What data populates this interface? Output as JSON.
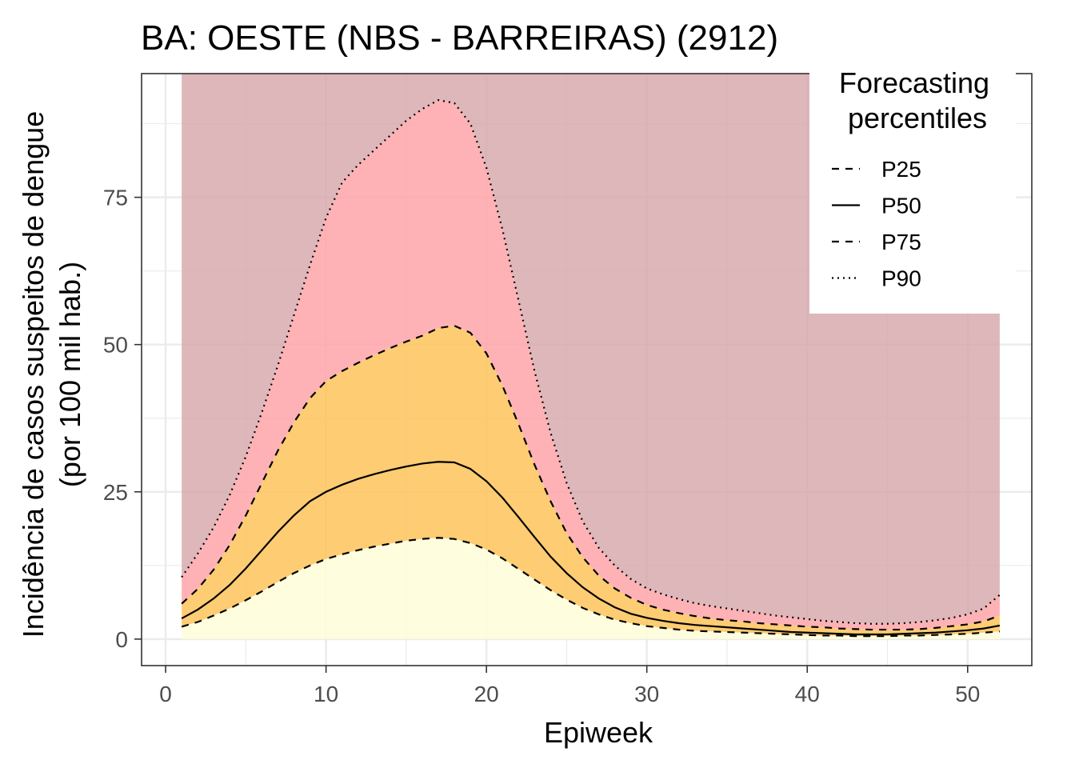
{
  "chart_data": {
    "type": "area",
    "title": "BA: OESTE (NBS - BARREIRAS) (2912)",
    "xlabel": "Epiweek",
    "ylabel_line1": "Incidência de casos suspeitos de dengue",
    "ylabel_line2": "(por 100 mil hab.)",
    "xlim": [
      -1.5,
      54
    ],
    "ylim": [
      -4.5,
      96
    ],
    "x_ticks": [
      0,
      10,
      20,
      30,
      40,
      50
    ],
    "x_tick_labels": [
      "0",
      "10",
      "20",
      "30",
      "40",
      "50"
    ],
    "y_ticks": [
      0,
      25,
      50,
      75
    ],
    "y_tick_labels": [
      "0",
      "25",
      "50",
      "75"
    ],
    "grid": true,
    "background_top": 96,
    "legend": {
      "title_line1": "Forecasting",
      "title_line2": "percentiles",
      "position": "top-right-inside",
      "items": [
        {
          "label": "P25",
          "linetype": "dashed"
        },
        {
          "label": "P50",
          "linetype": "solid"
        },
        {
          "label": "P75",
          "linetype": "dashed"
        },
        {
          "label": "P90",
          "linetype": "dotted"
        }
      ]
    },
    "colors": {
      "band_top": "#d5a5a7",
      "band_p90": "#fea5a8",
      "band_p75": "#fdc35b",
      "band_p25": "#fefed8",
      "line": "#000000"
    },
    "x": [
      1,
      2,
      3,
      4,
      5,
      6,
      7,
      8,
      9,
      10,
      11,
      12,
      13,
      14,
      15,
      16,
      17,
      18,
      19,
      20,
      21,
      22,
      23,
      24,
      25,
      26,
      27,
      28,
      29,
      30,
      31,
      32,
      33,
      34,
      35,
      36,
      37,
      38,
      39,
      40,
      41,
      42,
      43,
      44,
      45,
      46,
      47,
      48,
      49,
      50,
      51,
      52
    ],
    "series": [
      {
        "name": "P25",
        "linetype": "dashed",
        "values": [
          2.1,
          2.9,
          4.0,
          5.2,
          6.6,
          8.1,
          9.7,
          11.2,
          12.5,
          13.6,
          14.4,
          15.1,
          15.7,
          16.2,
          16.7,
          17.0,
          17.2,
          17.0,
          16.3,
          15.2,
          13.7,
          11.9,
          10.1,
          8.3,
          6.7,
          5.3,
          4.2,
          3.3,
          2.7,
          2.2,
          1.9,
          1.6,
          1.4,
          1.3,
          1.2,
          1.1,
          1.0,
          0.9,
          0.8,
          0.7,
          0.6,
          0.6,
          0.5,
          0.5,
          0.5,
          0.6,
          0.6,
          0.7,
          0.8,
          0.9,
          1.1,
          1.3
        ]
      },
      {
        "name": "P50",
        "linetype": "solid",
        "values": [
          3.5,
          5.0,
          6.9,
          9.2,
          12.0,
          15.1,
          18.2,
          21.0,
          23.4,
          25.0,
          26.2,
          27.2,
          28.0,
          28.7,
          29.3,
          29.8,
          30.1,
          30.0,
          28.9,
          26.8,
          24.0,
          20.7,
          17.3,
          14.0,
          11.2,
          8.8,
          6.9,
          5.4,
          4.3,
          3.6,
          3.1,
          2.7,
          2.4,
          2.2,
          2.0,
          1.8,
          1.6,
          1.4,
          1.2,
          1.1,
          1.0,
          0.9,
          0.8,
          0.8,
          0.8,
          0.9,
          1.0,
          1.1,
          1.3,
          1.5,
          1.8,
          2.3
        ]
      },
      {
        "name": "P75",
        "linetype": "dashed",
        "values": [
          6.0,
          8.5,
          11.8,
          16.0,
          21.0,
          26.5,
          32.0,
          36.8,
          40.9,
          43.8,
          45.5,
          46.9,
          48.2,
          49.4,
          50.5,
          51.5,
          52.8,
          53.2,
          52.0,
          48.5,
          43.0,
          36.5,
          29.6,
          23.4,
          18.0,
          13.9,
          10.8,
          8.6,
          7.0,
          5.8,
          5.0,
          4.4,
          3.9,
          3.5,
          3.2,
          3.0,
          2.7,
          2.5,
          2.3,
          2.1,
          2.0,
          1.8,
          1.7,
          1.6,
          1.6,
          1.6,
          1.7,
          1.9,
          2.2,
          2.5,
          3.0,
          4.0
        ]
      },
      {
        "name": "P90",
        "linetype": "dotted",
        "values": [
          10.5,
          14.5,
          19.0,
          24.5,
          31.0,
          38.5,
          46.5,
          55.0,
          63.5,
          71.5,
          77.5,
          80.5,
          83.0,
          85.5,
          88.0,
          90.0,
          91.5,
          91.0,
          87.5,
          80.0,
          69.5,
          57.5,
          45.5,
          35.0,
          26.5,
          20.0,
          15.5,
          12.5,
          10.2,
          8.6,
          7.6,
          6.8,
          6.1,
          5.6,
          5.2,
          4.8,
          4.4,
          4.0,
          3.7,
          3.4,
          3.1,
          2.9,
          2.7,
          2.6,
          2.6,
          2.7,
          2.9,
          3.2,
          3.6,
          4.2,
          5.2,
          7.5
        ]
      }
    ]
  }
}
